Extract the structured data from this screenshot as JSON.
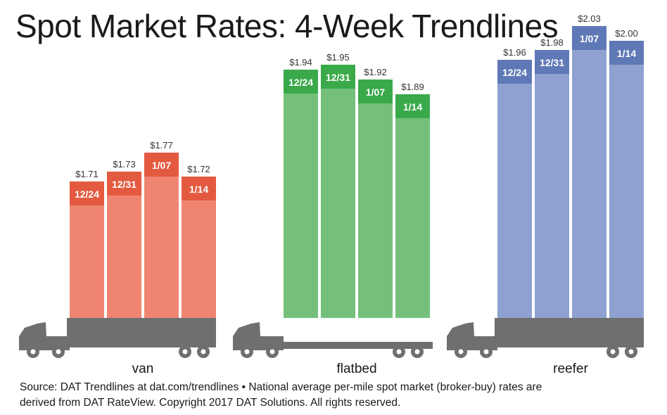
{
  "title": "Spot Market Rates: 4-Week Trendlines",
  "source": {
    "line1": "Source: DAT Trendlines at dat.com/trendlines • National average per-mile spot market (broker-buy) rates are",
    "line2": "derived from DAT RateView. Copyright 2017 DAT Solutions. All rights reserved."
  },
  "colors": {
    "van": {
      "band": "#e45a40",
      "body": "#ef8571"
    },
    "flatbed": {
      "band": "#3aa94a",
      "body": "#74c07b"
    },
    "reefer": {
      "band": "#5f79b6",
      "body": "#8ea1d0"
    },
    "truck": "#6f6f6f",
    "value_text": "#333333",
    "band_text": "#ffffff"
  },
  "chart_data": {
    "type": "bar",
    "title": "Spot Market Rates: 4-Week Trendlines",
    "categories": [
      "12/24",
      "12/31",
      "1/07",
      "1/14"
    ],
    "series": [
      {
        "name": "van",
        "values": [
          1.71,
          1.73,
          1.77,
          1.72
        ],
        "labels": [
          "$1.71",
          "$1.73",
          "$1.77",
          "$1.72"
        ]
      },
      {
        "name": "flatbed",
        "values": [
          1.94,
          1.95,
          1.92,
          1.89
        ],
        "labels": [
          "$1.94",
          "$1.95",
          "$1.92",
          "$1.89"
        ]
      },
      {
        "name": "reefer",
        "values": [
          1.96,
          1.98,
          2.03,
          2.0
        ],
        "labels": [
          "$1.96",
          "$1.98",
          "$2.03",
          "$2.00"
        ]
      }
    ],
    "grid": false,
    "legend": "none"
  }
}
